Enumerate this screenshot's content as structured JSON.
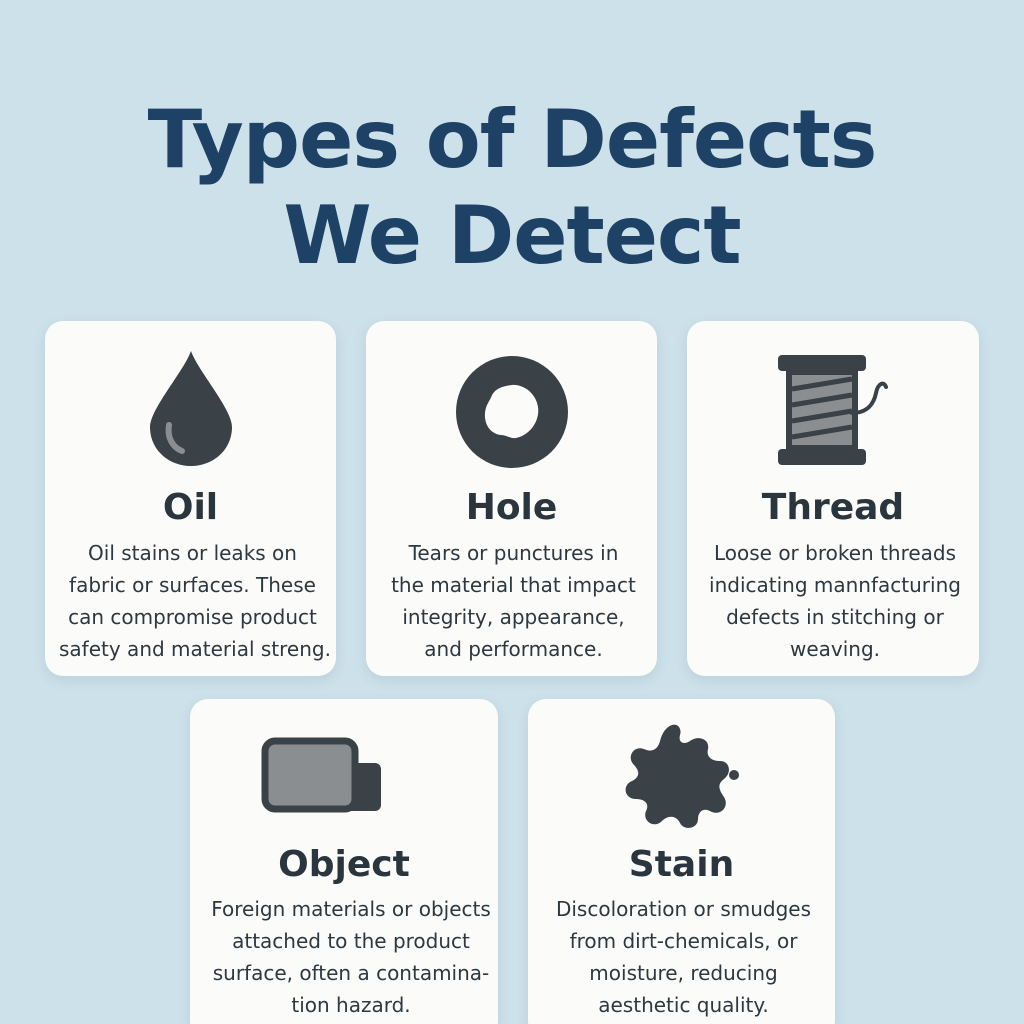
{
  "title": {
    "line1": "Types of Defects",
    "line2": "We Detect"
  },
  "colors": {
    "background": "#cde1ea",
    "title": "#1d4266",
    "card": "#fbfbf9",
    "icon_dark": "#3a4147",
    "icon_gray": "#8a8e91"
  },
  "cards": [
    {
      "icon": "oil-drop-icon",
      "title": "Oil",
      "lines": [
        "Oil stains or leaks on",
        "fabric or surfaces. These",
        "can compromise product",
        "safety and material streng."
      ]
    },
    {
      "icon": "hole-ring-icon",
      "title": "Hole",
      "lines": [
        "Tears or punctures in",
        "the material that impact",
        "integrity, appearance,",
        "and performance."
      ]
    },
    {
      "icon": "thread-spool-icon",
      "title": "Thread",
      "lines": [
        "Loose or broken threads",
        "indicating mannfacturing",
        "defects in stitching or",
        "weaving."
      ]
    },
    {
      "icon": "object-block-icon",
      "title": "Object",
      "lines": [
        "Foreign materials or objects",
        "attached to the product",
        "surface, often a contamina-",
        "tion hazard."
      ]
    },
    {
      "icon": "stain-splat-icon",
      "title": "Stain",
      "lines": [
        "Discoloration or smudges",
        "from dirt-chemicals, or",
        "moisture, reducing",
        "aesthetic quality."
      ]
    }
  ]
}
